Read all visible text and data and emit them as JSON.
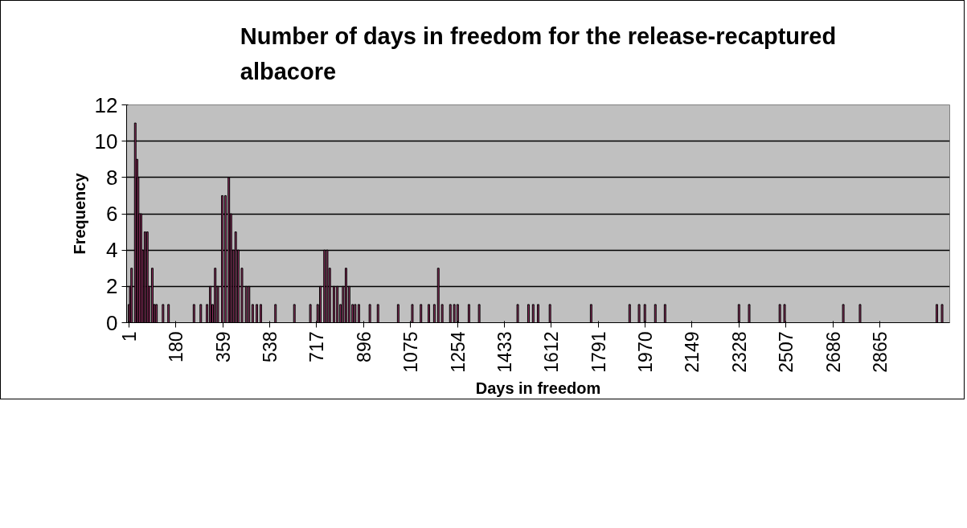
{
  "chart_data": {
    "type": "bar",
    "title": "Number of days in freedom for the release-recaptured albacore",
    "xlabel": "Days in freedom",
    "ylabel": "Frequency",
    "x": [
      1,
      6,
      11,
      25,
      32,
      36,
      41,
      47,
      54,
      62,
      71,
      78,
      90,
      98,
      106,
      131,
      152,
      249,
      275,
      299,
      311,
      320,
      330,
      340,
      357,
      369,
      382,
      390,
      399,
      408,
      418,
      432,
      448,
      459,
      473,
      489,
      504,
      560,
      632,
      693,
      721,
      731,
      747,
      757,
      767,
      783,
      796,
      808,
      818,
      829,
      841,
      854,
      864,
      878,
      920,
      951,
      1028,
      1082,
      1115,
      1145,
      1166,
      1181,
      1196,
      1227,
      1242,
      1255,
      1298,
      1337,
      1484,
      1525,
      1543,
      1562,
      1607,
      1764,
      1911,
      1947,
      1969,
      2009,
      2046,
      2328,
      2367,
      2484,
      2502,
      2726,
      2790,
      3083,
      3103
    ],
    "values": [
      1,
      2,
      3,
      11,
      9,
      8,
      6,
      6,
      4,
      5,
      5,
      2,
      3,
      1,
      1,
      1,
      1,
      1,
      1,
      1,
      2,
      1,
      3,
      2,
      7,
      7,
      8,
      6,
      4,
      5,
      4,
      3,
      2,
      2,
      1,
      1,
      1,
      1,
      1,
      1,
      1,
      2,
      4,
      4,
      3,
      2,
      2,
      1,
      2,
      3,
      2,
      1,
      1,
      1,
      1,
      1,
      1,
      1,
      1,
      1,
      1,
      3,
      1,
      1,
      1,
      1,
      1,
      1,
      1,
      1,
      1,
      1,
      1,
      1,
      1,
      1,
      1,
      1,
      1,
      1,
      1,
      1,
      1,
      1,
      1,
      1,
      1
    ],
    "color": "#993366",
    "xlim": [
      -8,
      3132
    ],
    "xticks": [
      1,
      180,
      359,
      538,
      717,
      896,
      1075,
      1254,
      1433,
      1612,
      1791,
      1970,
      2149,
      2328,
      2507,
      2686,
      2865
    ],
    "ylim": [
      0,
      12
    ],
    "yticks": [
      0,
      2,
      4,
      6,
      8,
      10,
      12
    ],
    "grid": "y"
  }
}
